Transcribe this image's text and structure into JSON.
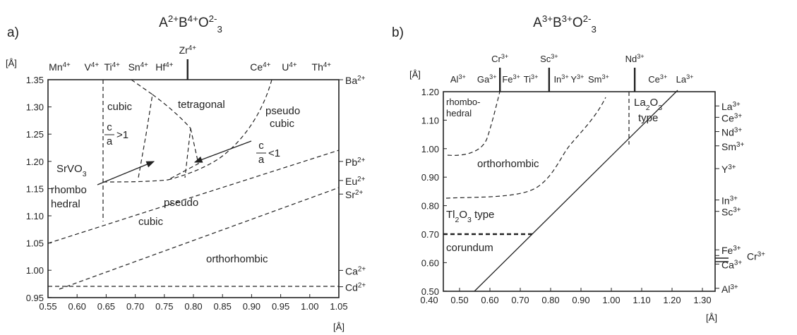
{
  "panel_a": {
    "letter": "a)",
    "title": [
      {
        "text": "A"
      },
      {
        "sup": "2+"
      },
      {
        "text": "B"
      },
      {
        "sup": "4+"
      },
      {
        "text": "O"
      },
      {
        "sup": "2-"
      },
      {
        "sub": "3"
      }
    ],
    "unit_y": "[Å]",
    "unit_x": "[Å]",
    "yticks": [
      "1.35",
      "1.30",
      "1.25",
      "1.20",
      "1.15",
      "1.10",
      "1.05",
      "1.00",
      "0.95"
    ],
    "xticks": [
      "0.55",
      "0.60",
      "0.65",
      "0.70",
      "0.75",
      "0.80",
      "0.85",
      "0.90",
      "0.95",
      "1.00",
      "1.05"
    ],
    "top_ions": [
      {
        "label": [
          {
            "text": "Mn"
          },
          {
            "sup": "4+"
          }
        ],
        "x": 0.57
      },
      {
        "label": [
          {
            "text": "V"
          },
          {
            "sup": "4+"
          }
        ],
        "x": 0.625
      },
      {
        "label": [
          {
            "text": "Ti"
          },
          {
            "sup": "4+"
          }
        ],
        "x": 0.66
      },
      {
        "label": [
          {
            "text": "Sn"
          },
          {
            "sup": "4+"
          }
        ],
        "x": 0.705
      },
      {
        "label": [
          {
            "text": "Hf"
          },
          {
            "sup": "4+"
          }
        ],
        "x": 0.75
      },
      {
        "label": [
          {
            "text": "Zr"
          },
          {
            "sup": "4+"
          }
        ],
        "x": 0.79,
        "marker": true
      },
      {
        "label": [
          {
            "text": "Ce"
          },
          {
            "sup": "4+"
          }
        ],
        "x": 0.915
      },
      {
        "label": [
          {
            "text": "U"
          },
          {
            "sup": "4+"
          }
        ],
        "x": 0.965
      },
      {
        "label": [
          {
            "text": "Th"
          },
          {
            "sup": "4+"
          }
        ],
        "x": 1.02
      }
    ],
    "right_ions": [
      {
        "label": [
          {
            "text": "Ba"
          },
          {
            "sup": "2+"
          }
        ],
        "y": 1.35
      },
      {
        "label": [
          {
            "text": "Pb"
          },
          {
            "sup": "2+"
          }
        ],
        "y": 1.2
      },
      {
        "label": [
          {
            "text": "Eu"
          },
          {
            "sup": "2+"
          }
        ],
        "y": 1.165
      },
      {
        "label": [
          {
            "text": "Sr"
          },
          {
            "sup": "2+"
          }
        ],
        "y": 1.14
      },
      {
        "label": [
          {
            "text": "Ca"
          },
          {
            "sup": "2+"
          }
        ],
        "y": 1.0
      },
      {
        "label": [
          {
            "text": "Cd"
          },
          {
            "sup": "2+"
          }
        ],
        "y": 0.97
      }
    ],
    "regions": {
      "cubic": "cubic",
      "tetragonal": "tetragonal",
      "pseudo_cubic_top": [
        "pseudo",
        "cubic"
      ],
      "ratio_gt": {
        "num": "c",
        "den": "a",
        "rel": ">1"
      },
      "ratio_lt": {
        "num": "c",
        "den": "a",
        "rel": "<1"
      },
      "srvo3": [
        {
          "text": "SrVO"
        },
        {
          "sub": "3"
        }
      ],
      "rhombohedral": [
        "rhombo",
        "hedral"
      ],
      "pseudo_cubic_low": [
        "pseudo",
        "cubic"
      ],
      "orthorhombic": "orthorhombic"
    }
  },
  "panel_b": {
    "letter": "b)",
    "title": [
      {
        "text": "A"
      },
      {
        "sup": "3+"
      },
      {
        "text": "B"
      },
      {
        "sup": "3+"
      },
      {
        "text": "O"
      },
      {
        "sup": "2-"
      },
      {
        "sub": "3"
      }
    ],
    "unit_y": "[Å]",
    "unit_x": "[Å]",
    "yticks": [
      "1.20",
      "1.10",
      "1.00",
      "0.90",
      "0.80",
      "0.70",
      "0.60",
      "0.50"
    ],
    "xticks": [
      "0.40",
      "0.50",
      "0.60",
      "0.70",
      "0.80",
      "0.90",
      "1.00",
      "1.10",
      "1.20",
      "1.30"
    ],
    "top_ions": [
      {
        "label": [
          {
            "text": "Al"
          },
          {
            "sup": "3+"
          }
        ],
        "x": 0.495
      },
      {
        "label": [
          {
            "text": "Ga"
          },
          {
            "sup": "3+"
          }
        ],
        "x": 0.59
      },
      {
        "label": [
          {
            "text": "Cr"
          },
          {
            "sup": "3+"
          }
        ],
        "x": 0.633,
        "marker": true
      },
      {
        "label": [
          {
            "text": "Fe"
          },
          {
            "sup": "3+"
          }
        ],
        "x": 0.67
      },
      {
        "label": [
          {
            "text": "Ti"
          },
          {
            "sup": "3+"
          }
        ],
        "x": 0.735
      },
      {
        "label": [
          {
            "text": "Sc"
          },
          {
            "sup": "3+"
          }
        ],
        "x": 0.795,
        "marker": true
      },
      {
        "label": [
          {
            "text": "In"
          },
          {
            "sup": "3+"
          }
        ],
        "x": 0.835
      },
      {
        "label": [
          {
            "text": "Y"
          },
          {
            "sup": "3+"
          }
        ],
        "x": 0.888
      },
      {
        "label": [
          {
            "text": "Sm"
          },
          {
            "sup": "3+"
          }
        ],
        "x": 0.958
      },
      {
        "label": [
          {
            "text": "Nd"
          },
          {
            "sup": "3+"
          }
        ],
        "x": 1.077,
        "marker": true
      },
      {
        "label": [
          {
            "text": "Ce"
          },
          {
            "sup": "3+"
          }
        ],
        "x": 1.153
      },
      {
        "label": [
          {
            "text": "La"
          },
          {
            "sup": "3+"
          }
        ],
        "x": 1.242
      }
    ],
    "right_ions": [
      {
        "label": [
          {
            "text": "La"
          },
          {
            "sup": "3+"
          }
        ],
        "y": 1.15
      },
      {
        "label": [
          {
            "text": "Ce"
          },
          {
            "sup": "3+"
          }
        ],
        "y": 1.11
      },
      {
        "label": [
          {
            "text": "Nd"
          },
          {
            "sup": "3+"
          }
        ],
        "y": 1.06
      },
      {
        "label": [
          {
            "text": "Sm"
          },
          {
            "sup": "3+"
          }
        ],
        "y": 1.01
      },
      {
        "label": [
          {
            "text": "Y"
          },
          {
            "sup": "3+"
          }
        ],
        "y": 0.93
      },
      {
        "label": [
          {
            "text": "In"
          },
          {
            "sup": "3+"
          }
        ],
        "y": 0.82
      },
      {
        "label": [
          {
            "text": "Sc"
          },
          {
            "sup": "3+"
          }
        ],
        "y": 0.78
      },
      {
        "label": [
          {
            "text": "Fe"
          },
          {
            "sup": "3+"
          }
        ],
        "y": 0.645
      },
      {
        "label": [
          {
            "text": "Ca"
          },
          {
            "sup": "3+"
          }
        ],
        "y": 0.595
      },
      {
        "label": [
          {
            "text": "Al"
          },
          {
            "sup": "3+"
          }
        ],
        "y": 0.51
      }
    ],
    "right_ions_outer": [
      {
        "label": [
          {
            "text": "Cr"
          },
          {
            "sup": "3+"
          }
        ],
        "y": 0.625
      }
    ],
    "regions": {
      "rhombohedral": [
        "rhombo-",
        "hedral"
      ],
      "orthorhombic": "orthorhombic",
      "la2o3": [
        {
          "text": "La"
        },
        {
          "sub": "2"
        },
        {
          "text": "O"
        },
        {
          "sub": "3"
        }
      ],
      "la2o3_type": "type",
      "tl2o3": [
        {
          "text": "Tl"
        },
        {
          "sub": "2"
        },
        {
          "text": "O"
        },
        {
          "sub": "3"
        },
        {
          "text": " type"
        }
      ],
      "corundum": "corundum"
    }
  }
}
